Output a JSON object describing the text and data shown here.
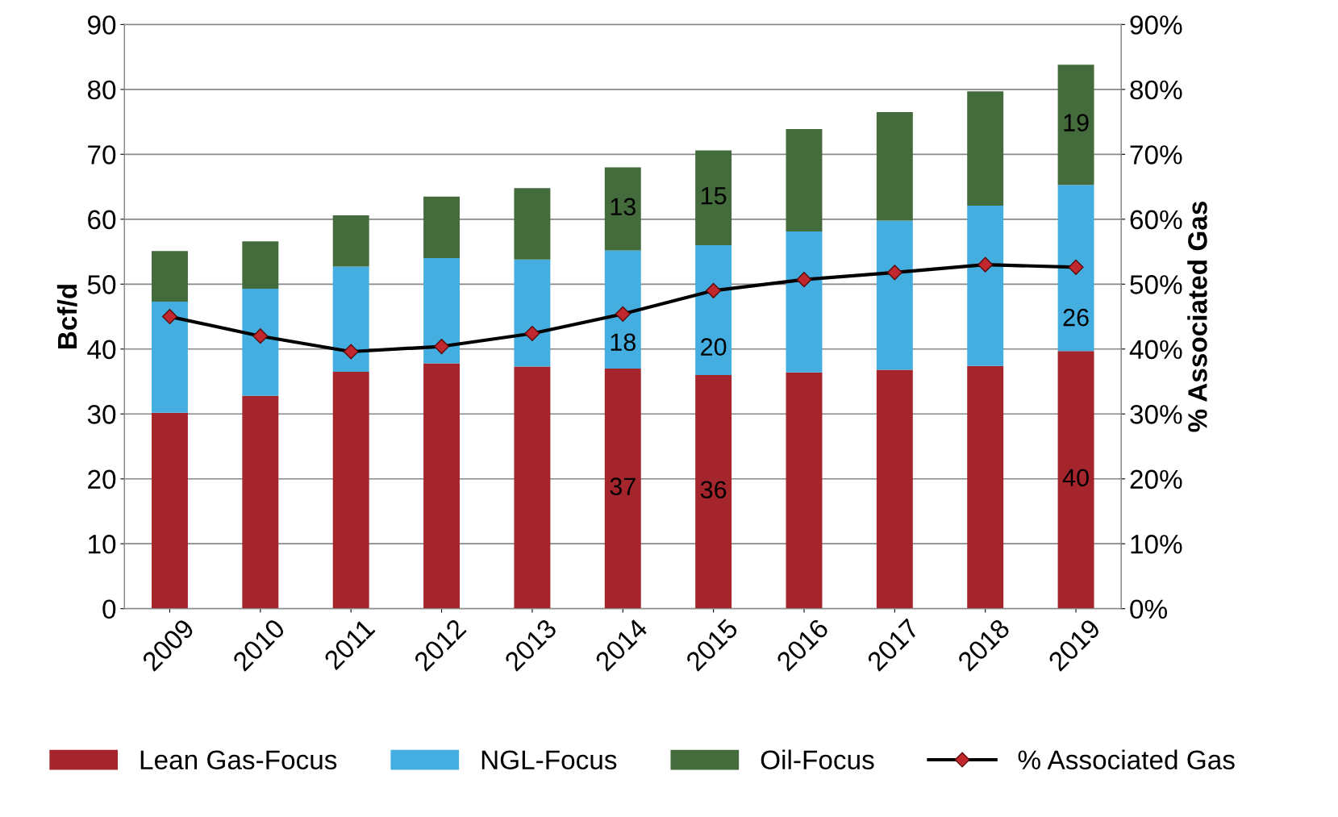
{
  "chart_data": {
    "type": "bar",
    "stacked": true,
    "ylabel": "Bcf/d",
    "y2label": "% Associated Gas",
    "categories": [
      "2009",
      "2010",
      "2011",
      "2012",
      "2013",
      "2014",
      "2015",
      "2016",
      "2017",
      "2018",
      "2019"
    ],
    "series": [
      {
        "name": "Lean Gas-Focus",
        "color": "#a4262c",
        "values": [
          30.2,
          32.8,
          36.5,
          37.8,
          37.3,
          37.0,
          36.0,
          36.4,
          36.8,
          37.4,
          39.7
        ],
        "value_labels": [
          null,
          null,
          null,
          null,
          null,
          "37",
          "36",
          null,
          null,
          null,
          "40"
        ]
      },
      {
        "name": "NGL-Focus",
        "color": "#45aee0",
        "values": [
          17.1,
          16.5,
          16.2,
          16.2,
          16.5,
          18.2,
          20.0,
          21.7,
          23.0,
          24.7,
          25.6
        ],
        "value_labels": [
          null,
          null,
          null,
          null,
          null,
          "18",
          "20",
          null,
          null,
          null,
          "26"
        ]
      },
      {
        "name": "Oil-Focus",
        "color": "#436b3c",
        "values": [
          7.8,
          7.3,
          7.9,
          9.5,
          11.0,
          12.8,
          14.6,
          15.8,
          16.7,
          17.6,
          18.5
        ],
        "value_labels": [
          null,
          null,
          null,
          null,
          null,
          "13",
          "15",
          null,
          null,
          null,
          "19"
        ]
      },
      {
        "name": "% Associated Gas",
        "type": "line",
        "axis": "y2",
        "color": "#000000",
        "marker": "diamond",
        "values": [
          45.0,
          42.0,
          39.6,
          40.4,
          42.4,
          45.4,
          49.0,
          50.7,
          51.8,
          53.0,
          52.6
        ]
      }
    ],
    "ylim": [
      0,
      90
    ],
    "yticks": [
      0,
      10,
      20,
      30,
      40,
      50,
      60,
      70,
      80,
      90
    ],
    "y2lim": [
      0,
      90
    ],
    "y2ticks": [
      {
        "value": 0,
        "label": "0%"
      },
      {
        "value": 10,
        "label": "10%"
      },
      {
        "value": 20,
        "label": "20%"
      },
      {
        "value": 30,
        "label": "30%"
      },
      {
        "value": 40,
        "label": "40%"
      },
      {
        "value": 50,
        "label": "50%"
      },
      {
        "value": 60,
        "label": "60%"
      },
      {
        "value": 70,
        "label": "70%"
      },
      {
        "value": 80,
        "label": "80%"
      },
      {
        "value": 90,
        "label": "90%"
      }
    ],
    "grid": "y",
    "legend": "bottom"
  }
}
